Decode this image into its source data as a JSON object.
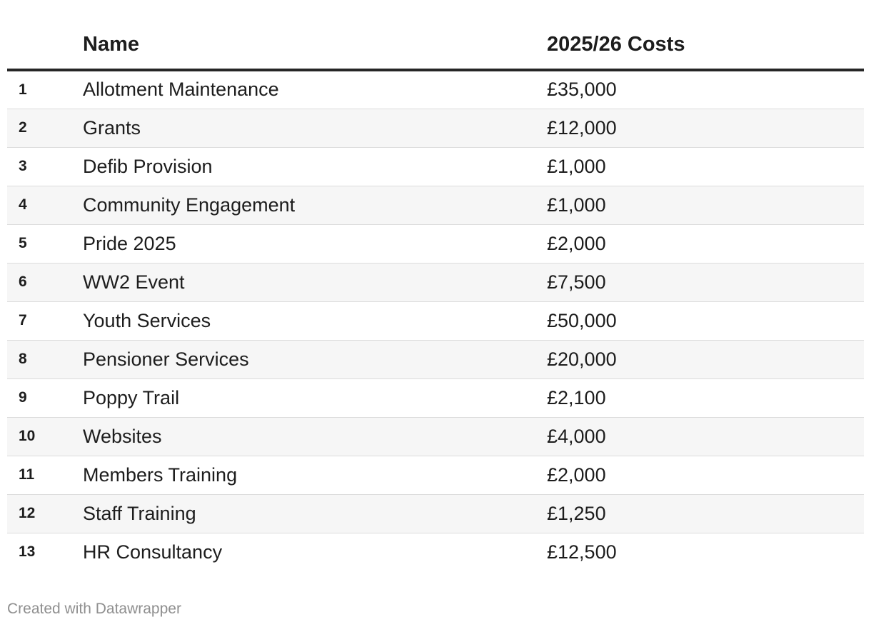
{
  "chart_data": {
    "type": "table",
    "columns": [
      "",
      "Name",
      "2025/26 Costs"
    ],
    "rows": [
      {
        "rank": "1",
        "name": "Allotment Maintenance",
        "cost": "£35,000"
      },
      {
        "rank": "2",
        "name": "Grants",
        "cost": "£12,000"
      },
      {
        "rank": "3",
        "name": "Defib Provision",
        "cost": "£1,000"
      },
      {
        "rank": "4",
        "name": "Community Engagement",
        "cost": "£1,000"
      },
      {
        "rank": "5",
        "name": "Pride 2025",
        "cost": "£2,000"
      },
      {
        "rank": "6",
        "name": "WW2 Event",
        "cost": "£7,500"
      },
      {
        "rank": "7",
        "name": "Youth Services",
        "cost": "£50,000"
      },
      {
        "rank": "8",
        "name": "Pensioner Services",
        "cost": "£20,000"
      },
      {
        "rank": "9",
        "name": "Poppy Trail",
        "cost": "£2,100"
      },
      {
        "rank": "10",
        "name": "Websites",
        "cost": "£4,000"
      },
      {
        "rank": "11",
        "name": "Members Training",
        "cost": "£2,000"
      },
      {
        "rank": "12",
        "name": "Staff Training",
        "cost": "£1,250"
      },
      {
        "rank": "13",
        "name": "HR Consultancy",
        "cost": "£12,500"
      }
    ],
    "values": [
      35000,
      12000,
      1000,
      1000,
      2000,
      7500,
      50000,
      20000,
      2100,
      4000,
      2000,
      1250,
      12500
    ],
    "unit": "£"
  },
  "footer": {
    "credit": "Created with Datawrapper"
  },
  "colors": {
    "text": "#1d1d1d",
    "header_rule": "#262626",
    "row_stripe": "#f6f6f6",
    "row_divider": "#dcdcdc",
    "footer_text": "#8f8f8f"
  }
}
